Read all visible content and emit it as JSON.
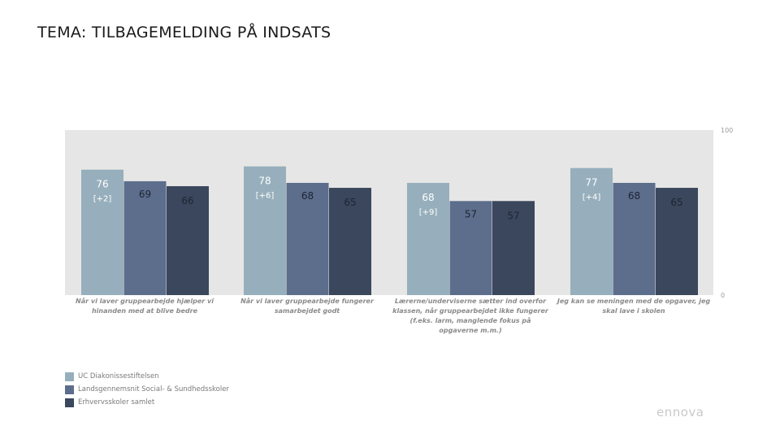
{
  "title": "TEMA: TILBAGEMELDING PÅ INDSATS",
  "colors": {
    "plot_background": "#e6e6e6",
    "series_1": "#97afbc",
    "series_2": "#5d6d8c",
    "series_3": "#3a475c"
  },
  "chart_data": {
    "type": "bar",
    "ylim": [
      0,
      100
    ],
    "y_ticks": [
      {
        "value": 100,
        "label": "100"
      },
      {
        "value": 0,
        "label": "0"
      }
    ],
    "grid": false,
    "categories": [
      "Når vi laver gruppearbejde hjælper vi hinanden med at blive bedre",
      "Når vi laver gruppearbejde fungerer samarbejdet godt",
      "Lærerne/underviserne sætter ind overfor klassen, når gruppearbejdet ikke fungerer (f.eks. larm, manglende fokus på opgaverne m.m.)",
      "Jeg kan se meningen med de opgaver, jeg skal lave i skolen"
    ],
    "category_lines": [
      [
        "Når vi laver gruppearbejde hjælper vi",
        "hinanden med at blive bedre"
      ],
      [
        "Når vi laver gruppearbejde fungerer",
        "samarbejdet godt"
      ],
      [
        "Lærerne/underviserne sætter ind overfor",
        "klassen, når gruppearbejdet ikke fungerer",
        "(f.eks. larm, manglende fokus på",
        "opgaverne m.m.)"
      ],
      [
        "Jeg kan se meningen med de opgaver, jeg",
        "skal lave i skolen"
      ]
    ],
    "series": [
      {
        "name": "UC Diakonissestiftelsen",
        "values": [
          76,
          78,
          68,
          77
        ],
        "changes": [
          "[+2]",
          "[+6]",
          "[+9]",
          "[+4]"
        ]
      },
      {
        "name": "Landsgennemsnit Social- & Sundhedsskoler",
        "values": [
          69,
          68,
          57,
          68
        ]
      },
      {
        "name": "Erhvervsskoler samlet",
        "values": [
          66,
          65,
          57,
          65
        ]
      }
    ],
    "legend_position": "bottom-left"
  },
  "legend": {
    "items": [
      "UC Diakonissestiftelsen",
      "Landsgennemsnit Social- & Sundhedsskoler",
      "Erhvervsskoler samlet"
    ]
  },
  "brand": {
    "name": "ennova"
  }
}
